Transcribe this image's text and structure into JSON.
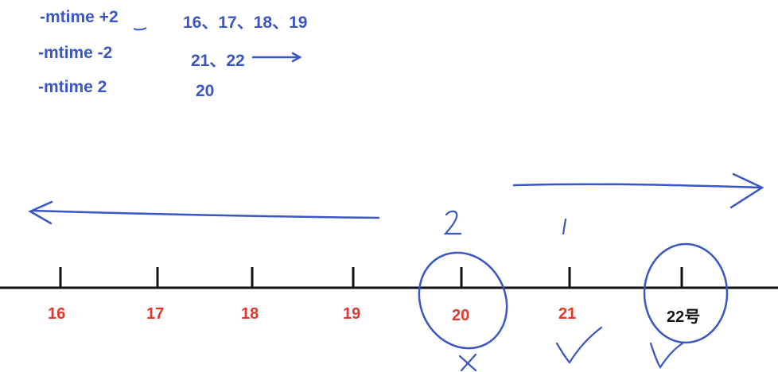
{
  "notes": [
    {
      "option": "-mtime  +2",
      "dates": "16、17、18、19"
    },
    {
      "option": "-mtime  -2",
      "dates": "21、22"
    },
    {
      "option": "-mtime  2",
      "dates": "20"
    }
  ],
  "timeline": {
    "ticks": [
      "16",
      "17",
      "18",
      "19",
      "20",
      "21",
      "22号"
    ]
  },
  "marks": {
    "above_20": "2",
    "above_21": "1"
  },
  "colors": {
    "ink_blue": "#3a55c4",
    "tick_red": "#e5362b",
    "axis_black": "#111111"
  }
}
